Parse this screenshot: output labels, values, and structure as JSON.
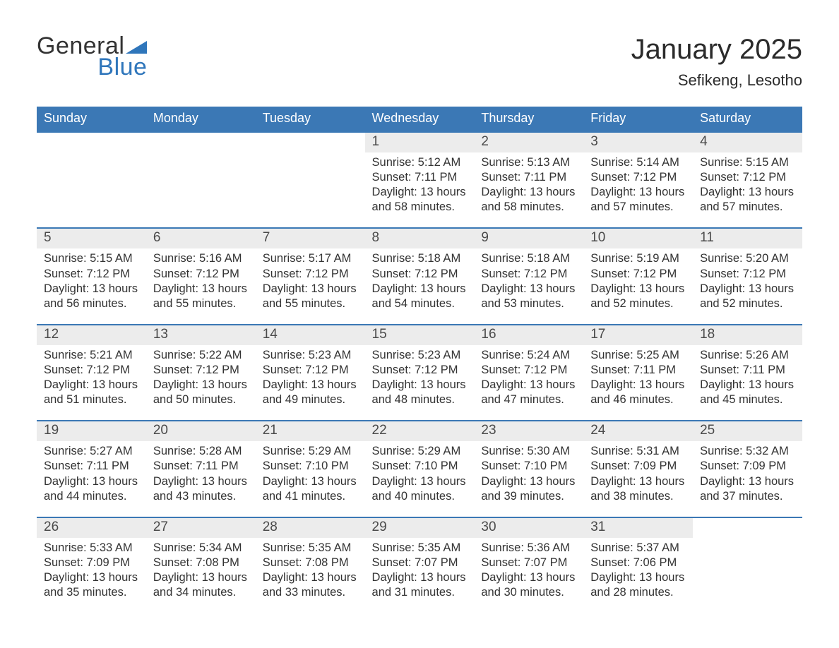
{
  "brand": {
    "line1": "General",
    "line2": "Blue",
    "accent_color": "#2f76bb"
  },
  "title": "January 2025",
  "location": "Sefikeng, Lesotho",
  "colors": {
    "header_bg": "#3b78b5",
    "header_fg": "#ffffff",
    "daynum_bg": "#ececec",
    "row_border": "#3b78b5",
    "body_text": "#333333",
    "page_bg": "#ffffff"
  },
  "day_labels": [
    "Sunday",
    "Monday",
    "Tuesday",
    "Wednesday",
    "Thursday",
    "Friday",
    "Saturday"
  ],
  "weeks": [
    [
      null,
      null,
      null,
      {
        "n": "1",
        "sr": "5:12 AM",
        "ss": "7:11 PM",
        "dl": "13 hours and 58 minutes."
      },
      {
        "n": "2",
        "sr": "5:13 AM",
        "ss": "7:11 PM",
        "dl": "13 hours and 58 minutes."
      },
      {
        "n": "3",
        "sr": "5:14 AM",
        "ss": "7:12 PM",
        "dl": "13 hours and 57 minutes."
      },
      {
        "n": "4",
        "sr": "5:15 AM",
        "ss": "7:12 PM",
        "dl": "13 hours and 57 minutes."
      }
    ],
    [
      {
        "n": "5",
        "sr": "5:15 AM",
        "ss": "7:12 PM",
        "dl": "13 hours and 56 minutes."
      },
      {
        "n": "6",
        "sr": "5:16 AM",
        "ss": "7:12 PM",
        "dl": "13 hours and 55 minutes."
      },
      {
        "n": "7",
        "sr": "5:17 AM",
        "ss": "7:12 PM",
        "dl": "13 hours and 55 minutes."
      },
      {
        "n": "8",
        "sr": "5:18 AM",
        "ss": "7:12 PM",
        "dl": "13 hours and 54 minutes."
      },
      {
        "n": "9",
        "sr": "5:18 AM",
        "ss": "7:12 PM",
        "dl": "13 hours and 53 minutes."
      },
      {
        "n": "10",
        "sr": "5:19 AM",
        "ss": "7:12 PM",
        "dl": "13 hours and 52 minutes."
      },
      {
        "n": "11",
        "sr": "5:20 AM",
        "ss": "7:12 PM",
        "dl": "13 hours and 52 minutes."
      }
    ],
    [
      {
        "n": "12",
        "sr": "5:21 AM",
        "ss": "7:12 PM",
        "dl": "13 hours and 51 minutes."
      },
      {
        "n": "13",
        "sr": "5:22 AM",
        "ss": "7:12 PM",
        "dl": "13 hours and 50 minutes."
      },
      {
        "n": "14",
        "sr": "5:23 AM",
        "ss": "7:12 PM",
        "dl": "13 hours and 49 minutes."
      },
      {
        "n": "15",
        "sr": "5:23 AM",
        "ss": "7:12 PM",
        "dl": "13 hours and 48 minutes."
      },
      {
        "n": "16",
        "sr": "5:24 AM",
        "ss": "7:12 PM",
        "dl": "13 hours and 47 minutes."
      },
      {
        "n": "17",
        "sr": "5:25 AM",
        "ss": "7:11 PM",
        "dl": "13 hours and 46 minutes."
      },
      {
        "n": "18",
        "sr": "5:26 AM",
        "ss": "7:11 PM",
        "dl": "13 hours and 45 minutes."
      }
    ],
    [
      {
        "n": "19",
        "sr": "5:27 AM",
        "ss": "7:11 PM",
        "dl": "13 hours and 44 minutes."
      },
      {
        "n": "20",
        "sr": "5:28 AM",
        "ss": "7:11 PM",
        "dl": "13 hours and 43 minutes."
      },
      {
        "n": "21",
        "sr": "5:29 AM",
        "ss": "7:10 PM",
        "dl": "13 hours and 41 minutes."
      },
      {
        "n": "22",
        "sr": "5:29 AM",
        "ss": "7:10 PM",
        "dl": "13 hours and 40 minutes."
      },
      {
        "n": "23",
        "sr": "5:30 AM",
        "ss": "7:10 PM",
        "dl": "13 hours and 39 minutes."
      },
      {
        "n": "24",
        "sr": "5:31 AM",
        "ss": "7:09 PM",
        "dl": "13 hours and 38 minutes."
      },
      {
        "n": "25",
        "sr": "5:32 AM",
        "ss": "7:09 PM",
        "dl": "13 hours and 37 minutes."
      }
    ],
    [
      {
        "n": "26",
        "sr": "5:33 AM",
        "ss": "7:09 PM",
        "dl": "13 hours and 35 minutes."
      },
      {
        "n": "27",
        "sr": "5:34 AM",
        "ss": "7:08 PM",
        "dl": "13 hours and 34 minutes."
      },
      {
        "n": "28",
        "sr": "5:35 AM",
        "ss": "7:08 PM",
        "dl": "13 hours and 33 minutes."
      },
      {
        "n": "29",
        "sr": "5:35 AM",
        "ss": "7:07 PM",
        "dl": "13 hours and 31 minutes."
      },
      {
        "n": "30",
        "sr": "5:36 AM",
        "ss": "7:07 PM",
        "dl": "13 hours and 30 minutes."
      },
      {
        "n": "31",
        "sr": "5:37 AM",
        "ss": "7:06 PM",
        "dl": "13 hours and 28 minutes."
      },
      null
    ]
  ],
  "field_labels": {
    "sunrise": "Sunrise: ",
    "sunset": "Sunset: ",
    "daylight": "Daylight: "
  }
}
